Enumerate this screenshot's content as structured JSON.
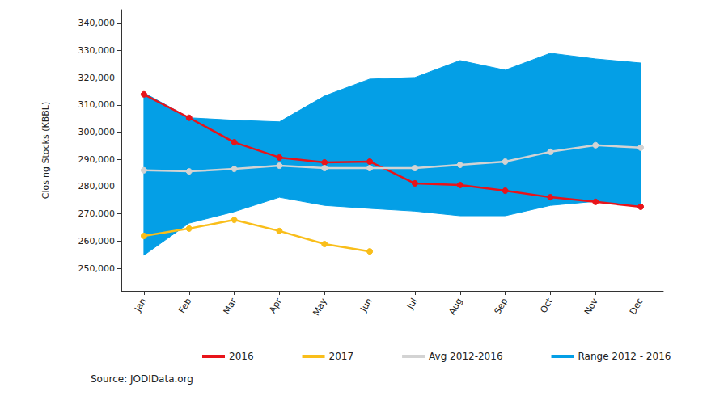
{
  "chart_data": {
    "type": "line",
    "y_label": "Closing Stocks (KBBL)",
    "source": "Source: JODIData.org",
    "categories": [
      "Jan",
      "Feb",
      "Mar",
      "Apr",
      "May",
      "Jun",
      "Jul",
      "Aug",
      "Sep",
      "Oct",
      "Nov",
      "Dec"
    ],
    "series": [
      {
        "name": "2016",
        "color": "#e8141a",
        "marker": "circle",
        "values": [
          313900,
          305300,
          296300,
          290700,
          288900,
          289200,
          281200,
          280600,
          278500,
          276100,
          274400,
          272600
        ]
      },
      {
        "name": "2017",
        "color": "#f9be1a",
        "marker": "circle",
        "values": [
          261900,
          264600,
          267800,
          263700,
          258900,
          256200,
          null,
          null,
          null,
          null,
          null,
          null
        ]
      },
      {
        "name": "Avg 2012-2016",
        "color": "#d3d3d3",
        "marker": "circle",
        "values": [
          286000,
          285600,
          286500,
          287700,
          286800,
          286800,
          286800,
          288000,
          289200,
          292800,
          295200,
          294300
        ]
      },
      {
        "name": "Range 2012 - 2016",
        "type": "range",
        "color": "#049fe6",
        "low": [
          254800,
          266600,
          270800,
          276100,
          273100,
          272000,
          271000,
          269300,
          269300,
          273100,
          274600,
          272600
        ],
        "high": [
          314500,
          305300,
          304400,
          303800,
          313300,
          319500,
          320100,
          326300,
          322800,
          329000,
          326900,
          325400
        ]
      }
    ],
    "ylim": [
      241700,
      345000
    ],
    "yticks": [
      {
        "value": 250000,
        "label": "250,000"
      },
      {
        "value": 260000,
        "label": "260,000"
      },
      {
        "value": 270000,
        "label": "270,000"
      },
      {
        "value": 280000,
        "label": "280,000"
      },
      {
        "value": 290000,
        "label": "290,000"
      },
      {
        "value": 300000,
        "label": "300,000"
      },
      {
        "value": 310000,
        "label": "310,000"
      },
      {
        "value": 320000,
        "label": "320,000"
      },
      {
        "value": 330000,
        "label": "330,000"
      },
      {
        "value": 340000,
        "label": "340,000"
      }
    ],
    "grid": false,
    "legend": "bottom"
  }
}
